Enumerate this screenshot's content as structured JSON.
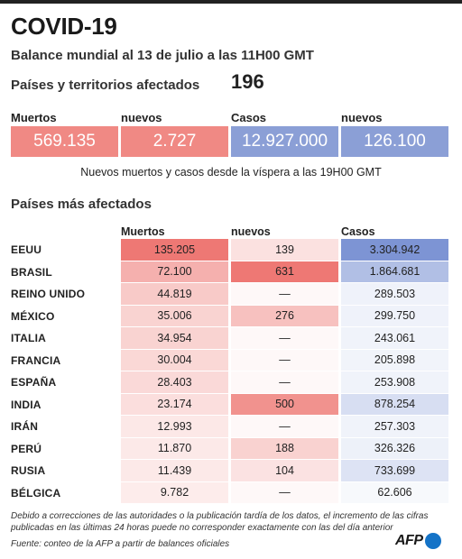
{
  "title": "COVID-19",
  "subtitle": "Balance mundial al 13 de julio a las 11H00 GMT",
  "affected": {
    "label": "Países y territorios afectados",
    "value": "196"
  },
  "summary": {
    "labels": [
      "Muertos",
      "nuevos",
      "Casos",
      "nuevos"
    ],
    "values": [
      "569.135",
      "2.727",
      "12.927.000",
      "126.100"
    ],
    "colors": [
      "#f08984",
      "#f08984",
      "#8b9fd6",
      "#8b9fd6"
    ],
    "note": "Nuevos muertos y casos desde la víspera a las 19H00 GMT"
  },
  "countries": {
    "title": "Países más afectados",
    "headers": [
      "Muertos",
      "nuevos",
      "Casos"
    ],
    "rows": [
      {
        "name": "EEUU",
        "deaths": "135.205",
        "new": "139",
        "cases": "3.304.942",
        "d_level": 1.0,
        "n_level": 0.18,
        "c_level": 1.0
      },
      {
        "name": "BRASIL",
        "deaths": "72.100",
        "new": "631",
        "cases": "1.864.681",
        "d_level": 0.55,
        "n_level": 1.0,
        "c_level": 0.58
      },
      {
        "name": "REINO UNIDO",
        "deaths": "44.819",
        "new": "—",
        "cases": "289.503",
        "d_level": 0.34,
        "n_level": 0.0,
        "c_level": 0.08
      },
      {
        "name": "MÉXICO",
        "deaths": "35.006",
        "new": "276",
        "cases": "299.750",
        "d_level": 0.27,
        "n_level": 0.43,
        "c_level": 0.08
      },
      {
        "name": "ITALIA",
        "deaths": "34.954",
        "new": "—",
        "cases": "243.061",
        "d_level": 0.27,
        "n_level": 0.0,
        "c_level": 0.07
      },
      {
        "name": "FRANCIA",
        "deaths": "30.004",
        "new": "—",
        "cases": "205.898",
        "d_level": 0.23,
        "n_level": 0.0,
        "c_level": 0.06
      },
      {
        "name": "ESPAÑA",
        "deaths": "28.403",
        "new": "—",
        "cases": "253.908",
        "d_level": 0.22,
        "n_level": 0.0,
        "c_level": 0.07
      },
      {
        "name": "INDIA",
        "deaths": "23.174",
        "new": "500",
        "cases": "878.254",
        "d_level": 0.18,
        "n_level": 0.8,
        "c_level": 0.27
      },
      {
        "name": "IRÁN",
        "deaths": "12.993",
        "new": "—",
        "cases": "257.303",
        "d_level": 0.1,
        "n_level": 0.0,
        "c_level": 0.07
      },
      {
        "name": "PERÚ",
        "deaths": "11.870",
        "new": "188",
        "cases": "326.326",
        "d_level": 0.09,
        "n_level": 0.3,
        "c_level": 0.09
      },
      {
        "name": "RUSIA",
        "deaths": "11.439",
        "new": "104",
        "cases": "733.699",
        "d_level": 0.09,
        "n_level": 0.17,
        "c_level": 0.22
      },
      {
        "name": "BÉLGICA",
        "deaths": "9.782",
        "new": "—",
        "cases": "62.606",
        "d_level": 0.07,
        "n_level": 0.0,
        "c_level": 0.01
      }
    ]
  },
  "footnote": "Debido a correcciones de las autoridades o la publicación tardía de los datos, el incremento de las cifras publicadas en las últimas 24 horas puede no corresponder exactamente con las del día anterior",
  "source": "Fuente: conteo de la AFP a partir de balances oficiales",
  "logo": {
    "text": "AFP",
    "icon": "afp-dot-icon",
    "color": "#1473c7"
  }
}
